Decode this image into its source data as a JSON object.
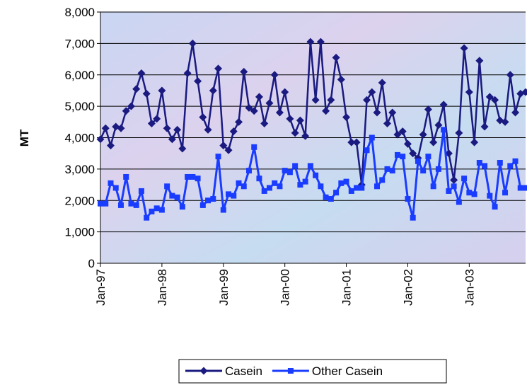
{
  "chart_data": {
    "type": "line",
    "ylabel": "MT",
    "categories": [
      "Jan-97",
      null,
      null,
      null,
      null,
      null,
      null,
      null,
      null,
      null,
      null,
      null,
      "Jan-98",
      null,
      null,
      null,
      null,
      null,
      null,
      null,
      null,
      null,
      null,
      null,
      "Jan-99",
      null,
      null,
      null,
      null,
      null,
      null,
      null,
      null,
      null,
      null,
      null,
      "Jan-00",
      null,
      null,
      null,
      null,
      null,
      null,
      null,
      null,
      null,
      null,
      null,
      "Jan-01",
      null,
      null,
      null,
      null,
      null,
      null,
      null,
      null,
      null,
      null,
      null,
      "Jan-02",
      null,
      null,
      null,
      null,
      null,
      null,
      null,
      null,
      null,
      null,
      null,
      "Jan-03",
      null,
      null,
      null,
      null,
      null,
      null,
      null,
      null,
      null,
      null,
      null
    ],
    "series": [
      {
        "name": "Casein",
        "color": "#1a1a80",
        "marker": "diamond",
        "values": [
          3950,
          4300,
          3750,
          4350,
          4300,
          4850,
          5000,
          5550,
          6050,
          5400,
          4450,
          4600,
          5500,
          4300,
          3950,
          4250,
          3650,
          6050,
          7000,
          5800,
          4650,
          4250,
          5500,
          6200,
          3750,
          3600,
          4200,
          4500,
          6100,
          4950,
          4850,
          5300,
          4450,
          5100,
          6000,
          4800,
          5450,
          4600,
          4150,
          4550,
          4050,
          7050,
          5200,
          7050,
          4850,
          5200,
          6550,
          5850,
          4650,
          3850,
          3850,
          2500,
          5200,
          5450,
          4800,
          5750,
          4450,
          4800,
          4100,
          4200,
          3800,
          3500,
          3350,
          4100,
          4900,
          3850,
          4400,
          5050,
          3500,
          2650,
          4150,
          6850,
          5450,
          3850,
          6450,
          4350,
          5300,
          5200,
          4550,
          4500,
          6000,
          4800,
          5400,
          5450
        ]
      },
      {
        "name": "Other Casein",
        "color": "#1a3cff",
        "marker": "square",
        "values": [
          1900,
          1900,
          2550,
          2400,
          1850,
          2750,
          1900,
          1850,
          2300,
          1450,
          1650,
          1750,
          1700,
          2450,
          2150,
          2100,
          1800,
          2750,
          2750,
          2700,
          1850,
          2000,
          2050,
          3400,
          1700,
          2200,
          2150,
          2550,
          2450,
          2950,
          3700,
          2700,
          2300,
          2400,
          2550,
          2450,
          2950,
          2900,
          3100,
          2500,
          2600,
          3100,
          2800,
          2450,
          2100,
          2050,
          2250,
          2550,
          2600,
          2300,
          2400,
          2400,
          3600,
          4000,
          2450,
          2650,
          3000,
          2950,
          3450,
          3400,
          2050,
          1450,
          3250,
          2950,
          3400,
          2450,
          3000,
          4250,
          2300,
          2450,
          1950,
          2700,
          2250,
          2200,
          3200,
          3100,
          2150,
          1800,
          3200,
          2250,
          3100,
          3250,
          2400,
          2400
        ]
      }
    ],
    "ylim": [
      0,
      8000
    ],
    "yticks": [
      0,
      {
        "value": 1000,
        "label": "1,000"
      },
      {
        "value": 2000,
        "label": "2,000"
      },
      {
        "value": 3000,
        "label": "3,000"
      },
      {
        "value": 4000,
        "label": "4,000"
      },
      {
        "value": 5000,
        "label": "5,000"
      },
      {
        "value": 6000,
        "label": "6,000"
      },
      {
        "value": 7000,
        "label": "7,000"
      },
      {
        "value": 8000,
        "label": "8,000"
      }
    ],
    "grid": true,
    "legend": "bottom"
  }
}
